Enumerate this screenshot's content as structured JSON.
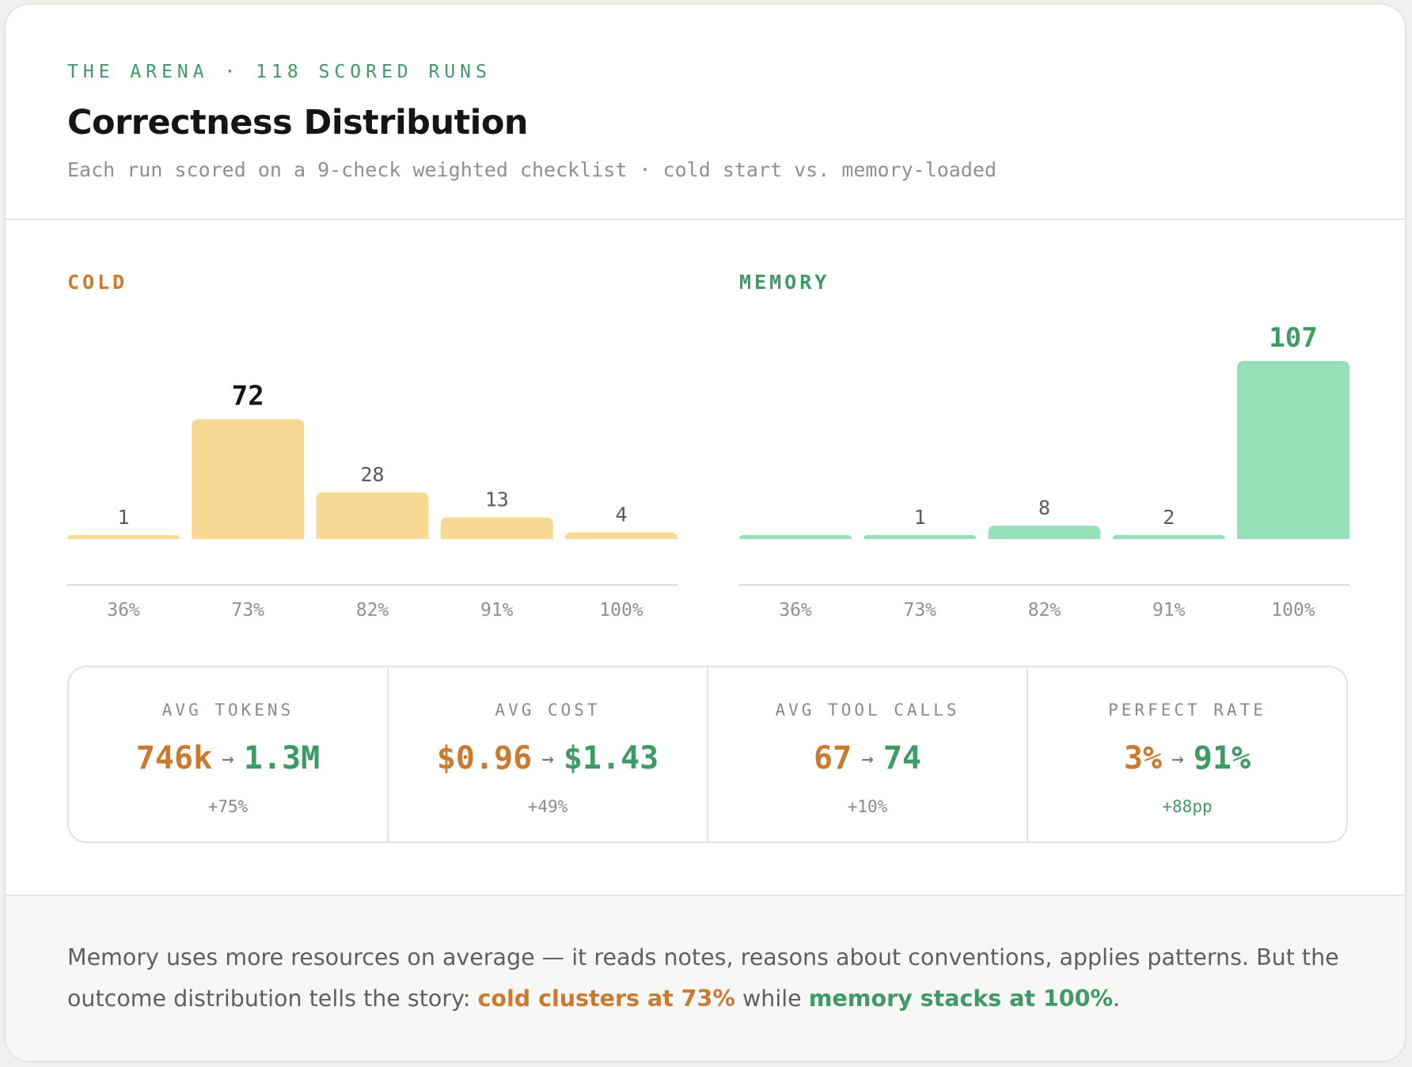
{
  "header": {
    "eyebrow": "THE ARENA · 118 SCORED RUNS",
    "title": "Correctness Distribution",
    "subtitle": "Each run scored on a 9-check weighted checklist · cold start vs. memory-loaded"
  },
  "colors": {
    "cold_bar": "#f7d994",
    "cold_accent": "#cb7a30",
    "memory_bar": "#97dfb9",
    "memory_accent": "#3f9a66"
  },
  "chart_data": [
    {
      "type": "bar",
      "title": "COLD",
      "categories": [
        "36%",
        "73%",
        "82%",
        "91%",
        "100%"
      ],
      "values": [
        1,
        72,
        28,
        13,
        4
      ],
      "highlight_index": 1,
      "ylim": [
        0,
        107
      ]
    },
    {
      "type": "bar",
      "title": "MEMORY",
      "categories": [
        "36%",
        "73%",
        "82%",
        "91%",
        "100%"
      ],
      "values": [
        0,
        1,
        8,
        2,
        107
      ],
      "highlight_index": 4,
      "ylim": [
        0,
        107
      ]
    }
  ],
  "stats": [
    {
      "label": "AVG TOKENS",
      "from": "746k",
      "arrow": "→",
      "to": "1.3M",
      "delta": "+75%",
      "delta_color": "gray"
    },
    {
      "label": "AVG COST",
      "from": "$0.96",
      "arrow": "→",
      "to": "$1.43",
      "delta": "+49%",
      "delta_color": "gray"
    },
    {
      "label": "AVG TOOL CALLS",
      "from": "67",
      "arrow": "→",
      "to": "74",
      "delta": "+10%",
      "delta_color": "gray"
    },
    {
      "label": "PERFECT RATE",
      "from": "3%",
      "arrow": "→",
      "to": "91%",
      "delta": "+88pp",
      "delta_color": "green"
    }
  ],
  "footer": {
    "text_1": "Memory uses more resources on average — it reads notes, reasons about conventions, applies patterns. But the outcome distribution tells the story: ",
    "highlight_cold": "cold clusters at 73%",
    "text_2": " while ",
    "highlight_memory": "memory stacks at 100%",
    "text_3": "."
  }
}
